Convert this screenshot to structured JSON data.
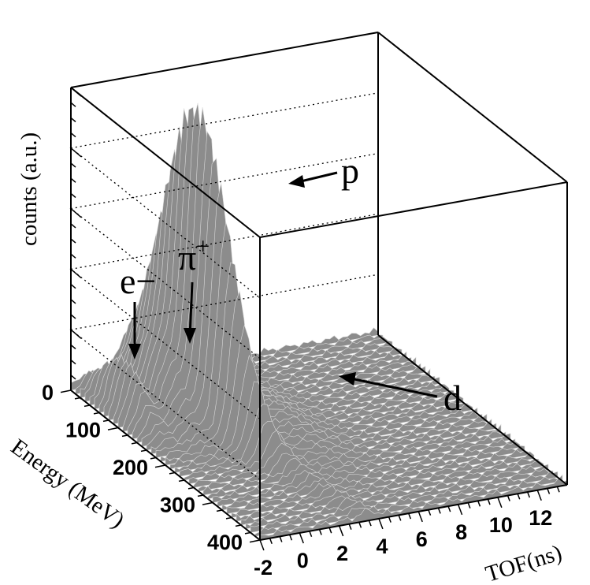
{
  "chart_data": {
    "type": "surface",
    "xlabel": "TOF(ns)",
    "ylabel": "Energy (MeV)",
    "zlabel": "counts (a.u.)",
    "x_ticks": [
      "-2",
      "0",
      "2",
      "4",
      "6",
      "8",
      "10",
      "12"
    ],
    "y_ticks": [
      "0",
      "100",
      "200",
      "300",
      "400"
    ],
    "xlim": [
      -2,
      13.5
    ],
    "ylim": [
      0,
      400
    ],
    "z_gridlines": 5,
    "surface_color": "#8c8c8c",
    "peaks": [
      {
        "label": "e−",
        "tof": -1.2,
        "energy": 80,
        "height": 0.17
      },
      {
        "label": "π",
        "label_sup": "+",
        "tof": 0.2,
        "energy": 90,
        "height": 0.21
      },
      {
        "label": "p",
        "tof": 1.6,
        "energy": 120,
        "height": 1.0
      },
      {
        "label": "d",
        "tof": 4.0,
        "energy": 160,
        "height": 0.08
      }
    ]
  }
}
